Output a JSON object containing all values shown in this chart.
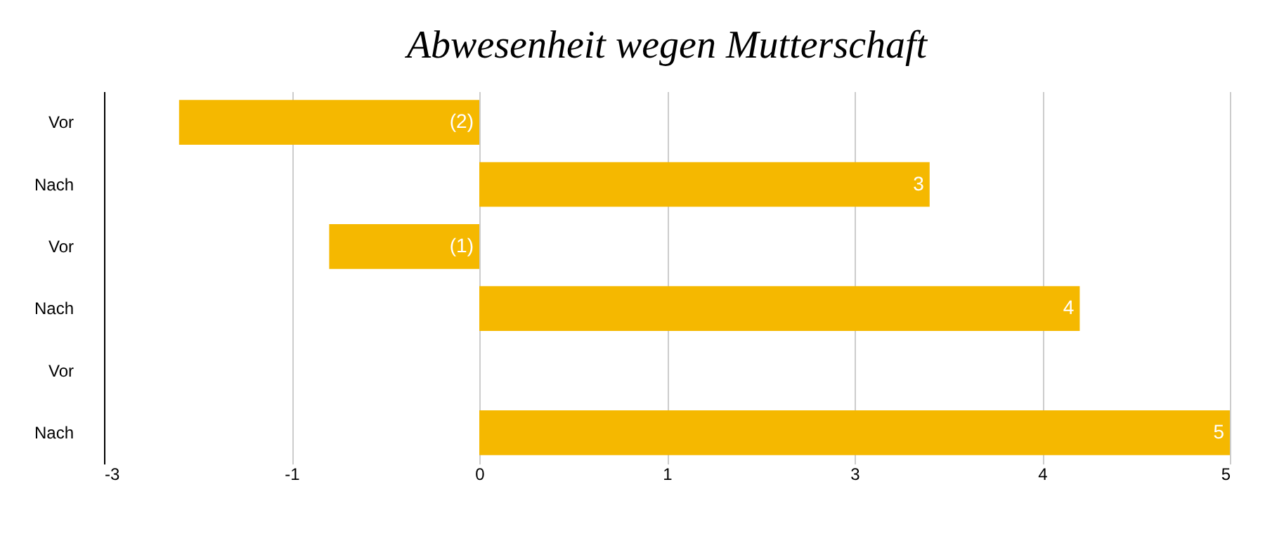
{
  "chart_data": {
    "type": "bar",
    "orientation": "horizontal",
    "title": "Abwesenheit wegen Mutterschaft",
    "categories": [
      "Vor",
      "Nach",
      "Vor",
      "Nach",
      "Vor",
      "Nach"
    ],
    "values": [
      -2,
      3,
      -1,
      4,
      null,
      5
    ],
    "value_labels": [
      "(2)",
      "3",
      "(1)",
      "4",
      null,
      "5"
    ],
    "color": "#f5b800",
    "xlim": [
      -2.5,
      5
    ],
    "xticks": [
      {
        "value": -2.5,
        "label": "-3"
      },
      {
        "value": -1.25,
        "label": "-1"
      },
      0,
      {
        "value": 1.25,
        "label": "1"
      },
      {
        "value": 2.5,
        "label": "3"
      },
      {
        "value": 3.75,
        "label": "4"
      },
      5
    ],
    "grid": "x"
  }
}
